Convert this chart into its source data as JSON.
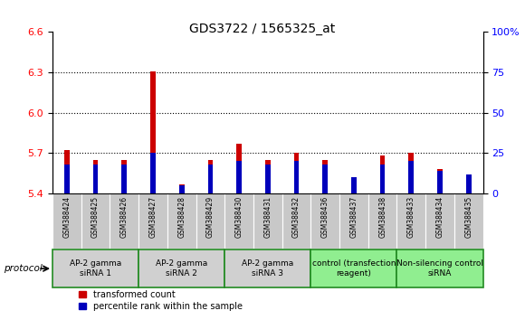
{
  "title": "GDS3722 / 1565325_at",
  "samples": [
    "GSM388424",
    "GSM388425",
    "GSM388426",
    "GSM388427",
    "GSM388428",
    "GSM388429",
    "GSM388430",
    "GSM388431",
    "GSM388432",
    "GSM388436",
    "GSM388437",
    "GSM388438",
    "GSM388433",
    "GSM388434",
    "GSM388435"
  ],
  "transformed_count": [
    5.72,
    5.65,
    5.65,
    6.31,
    5.47,
    5.65,
    5.77,
    5.65,
    5.7,
    5.65,
    5.5,
    5.68,
    5.7,
    5.58,
    5.5
  ],
  "percentile_rank": [
    18,
    18,
    18,
    25,
    5,
    18,
    20,
    18,
    20,
    18,
    10,
    18,
    20,
    14,
    12
  ],
  "ylim_left": [
    5.4,
    6.6
  ],
  "ylim_right": [
    0,
    100
  ],
  "yticks_left": [
    5.4,
    5.7,
    6.0,
    6.3,
    6.6
  ],
  "yticks_right": [
    0,
    25,
    50,
    75,
    100
  ],
  "ytick_labels_right": [
    "0",
    "25",
    "50",
    "75",
    "100%"
  ],
  "dotted_lines": [
    5.7,
    6.0,
    6.3
  ],
  "bar_color_red": "#CC0000",
  "bar_color_blue": "#0000BB",
  "groups": [
    {
      "label": "AP-2 gamma\nsiRNA 1",
      "indices": [
        0,
        1,
        2
      ],
      "color": "#d0d0d0"
    },
    {
      "label": "AP-2 gamma\nsiRNA 2",
      "indices": [
        3,
        4,
        5
      ],
      "color": "#d0d0d0"
    },
    {
      "label": "AP-2 gamma\nsiRNA 3",
      "indices": [
        6,
        7,
        8
      ],
      "color": "#d0d0d0"
    },
    {
      "label": "control (transfection\nreagent)",
      "indices": [
        9,
        10,
        11
      ],
      "color": "#90EE90"
    },
    {
      "label": "Non-silencing control\nsiRNA",
      "indices": [
        12,
        13,
        14
      ],
      "color": "#90EE90"
    }
  ],
  "legend_red": "transformed count",
  "legend_blue": "percentile rank within the sample",
  "protocol_label": "protocol",
  "red_bar_width": 0.18,
  "blue_bar_width": 0.18,
  "group_border_color": "#228B22",
  "tick_bg_color": "#c8c8c8"
}
